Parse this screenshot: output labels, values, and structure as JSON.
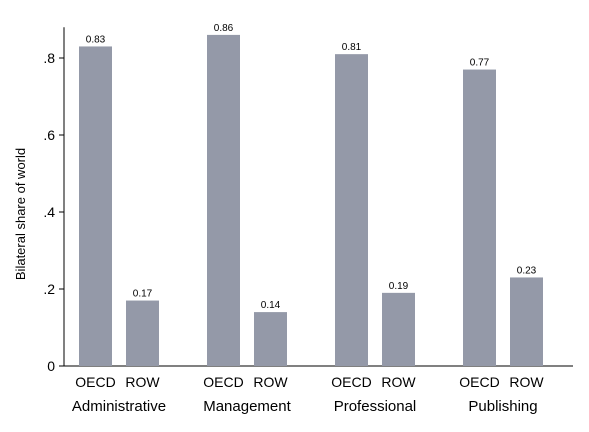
{
  "chart_data": {
    "type": "bar",
    "ylabel": "Bilateral share of world",
    "ylim": [
      0,
      0.88
    ],
    "yticks": [
      0,
      0.2,
      0.4,
      0.6,
      0.8
    ],
    "ytick_labels": [
      "0",
      ".2",
      ".4",
      ".6",
      ".8"
    ],
    "grid": false,
    "bar_color": "#9499a8",
    "groups": [
      {
        "name": "Administrative",
        "bars": [
          {
            "label": "OECD",
            "value": 0.83,
            "value_label": "0.83"
          },
          {
            "label": "ROW",
            "value": 0.17,
            "value_label": "0.17"
          }
        ]
      },
      {
        "name": "Management",
        "bars": [
          {
            "label": "OECD",
            "value": 0.86,
            "value_label": "0.86"
          },
          {
            "label": "ROW",
            "value": 0.14,
            "value_label": "0.14"
          }
        ]
      },
      {
        "name": "Professional",
        "bars": [
          {
            "label": "OECD",
            "value": 0.81,
            "value_label": "0.81"
          },
          {
            "label": "ROW",
            "value": 0.19,
            "value_label": "0.19"
          }
        ]
      },
      {
        "name": "Publishing",
        "bars": [
          {
            "label": "OECD",
            "value": 0.77,
            "value_label": "0.77"
          },
          {
            "label": "ROW",
            "value": 0.23,
            "value_label": "0.23"
          }
        ]
      }
    ]
  }
}
